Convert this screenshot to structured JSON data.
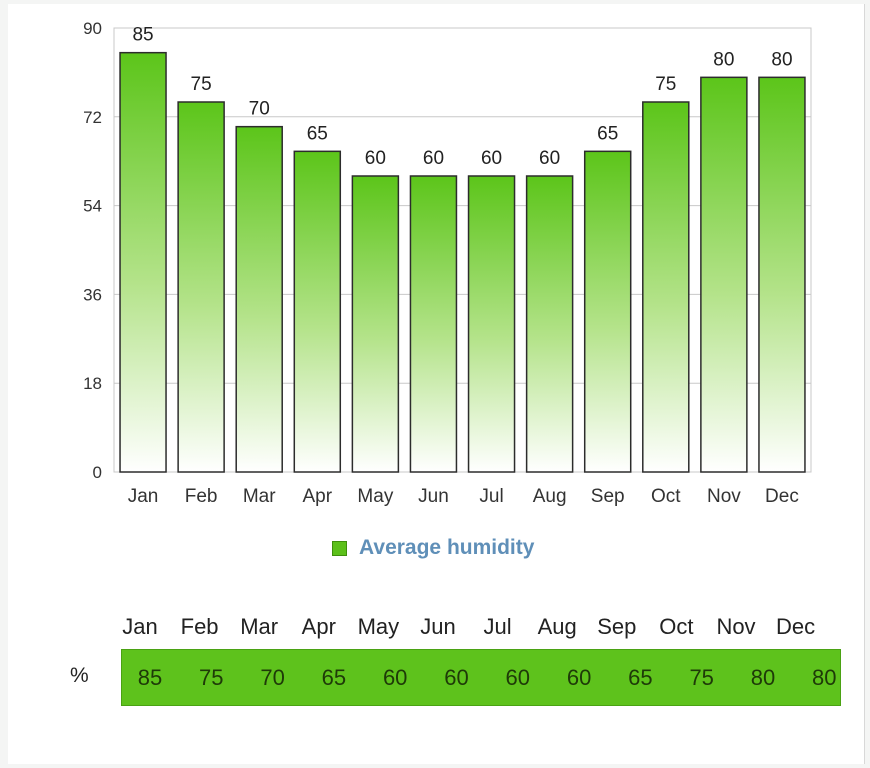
{
  "chart_data": {
    "type": "bar",
    "categories": [
      "Jan",
      "Feb",
      "Mar",
      "Apr",
      "May",
      "Jun",
      "Jul",
      "Aug",
      "Sep",
      "Oct",
      "Nov",
      "Dec"
    ],
    "series": [
      {
        "name": "Average humidity",
        "values": [
          85,
          75,
          70,
          65,
          60,
          60,
          60,
          60,
          65,
          75,
          80,
          80
        ]
      }
    ],
    "ylim": [
      0,
      90
    ],
    "yticks": [
      0,
      18,
      36,
      54,
      72,
      90
    ],
    "grid": true,
    "legend": "bottom-center"
  },
  "colors": {
    "bar_top": "#5cc51a",
    "bar_bottom": "#ffffff",
    "bar_border": "#2c2c2c",
    "band": "#5ec21c",
    "legend_text": "#5f8fb8"
  },
  "table": {
    "row_label": "%",
    "headers": [
      "Jan",
      "Feb",
      "Mar",
      "Apr",
      "May",
      "Jun",
      "Jul",
      "Aug",
      "Sep",
      "Oct",
      "Nov",
      "Dec"
    ],
    "values": [
      "85",
      "75",
      "70",
      "65",
      "60",
      "60",
      "60",
      "60",
      "65",
      "75",
      "80",
      "80"
    ]
  }
}
